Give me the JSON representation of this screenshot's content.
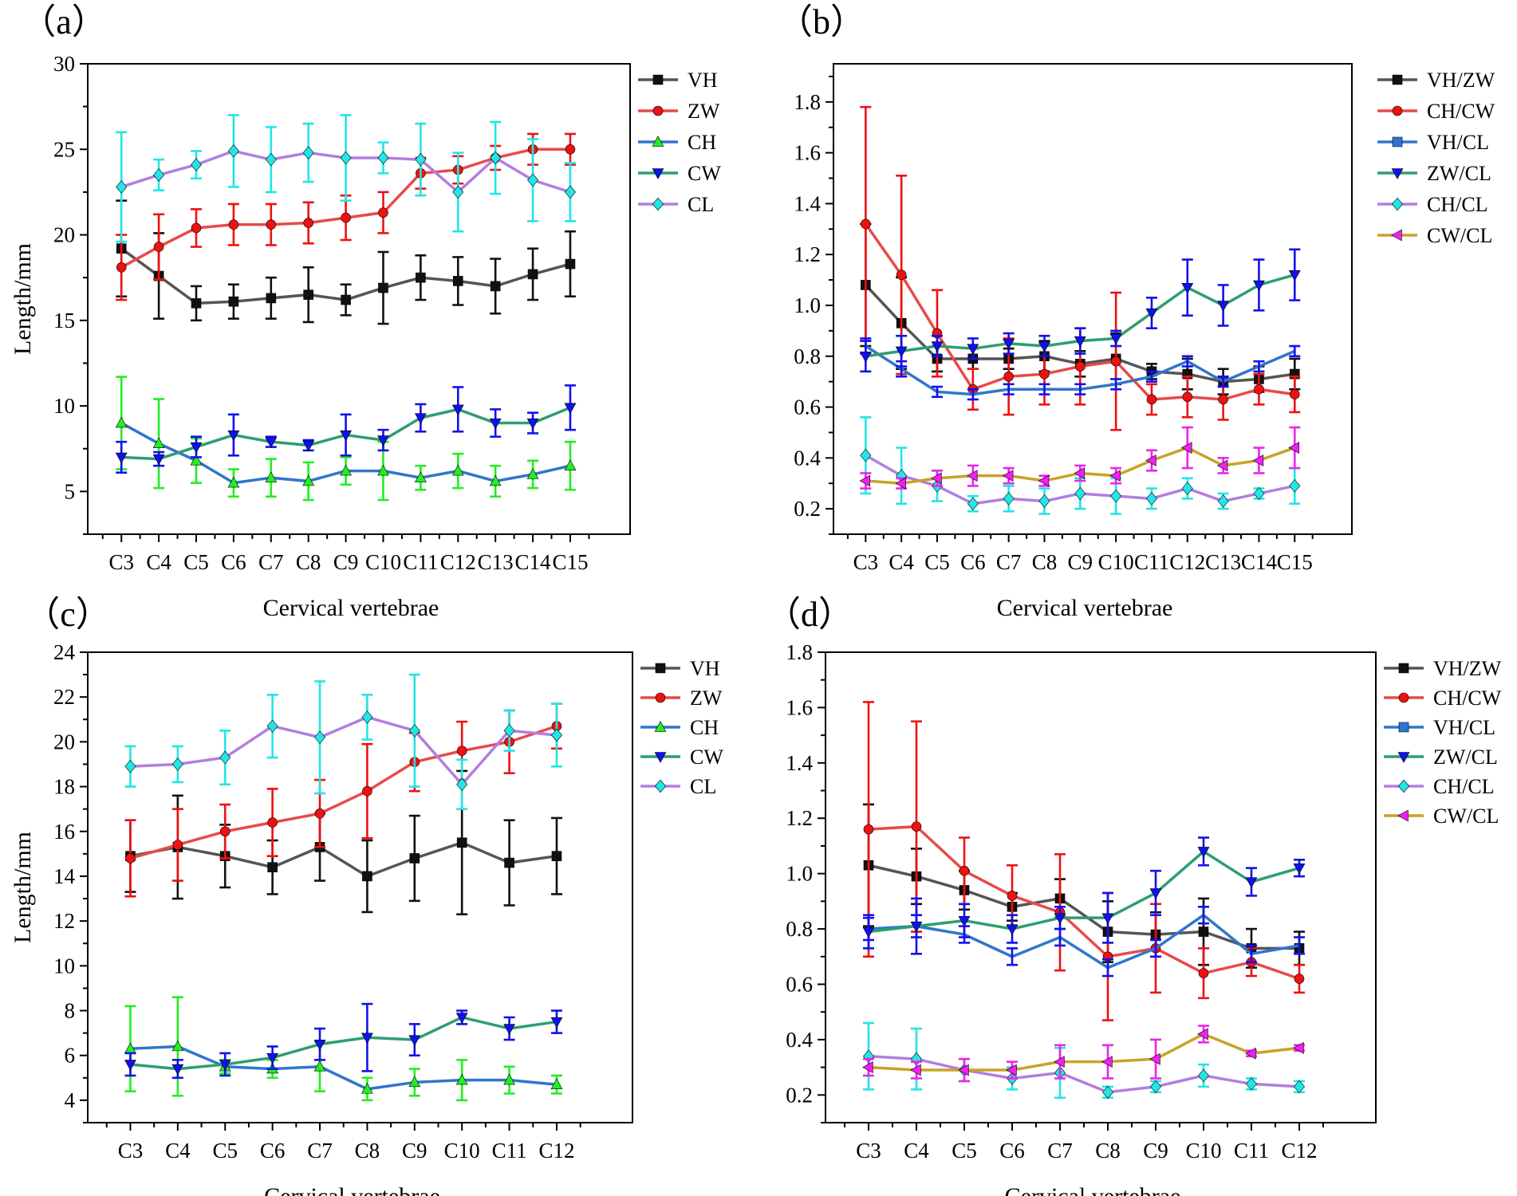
{
  "figure": {
    "chart_data": [
      {
        "id": "a",
        "panel_label": "（a）",
        "type": "line",
        "title": "",
        "xlabel": "Cervical vertebrae",
        "ylabel": "Length/mm",
        "categories": [
          "C3",
          "C4",
          "C5",
          "C6",
          "C7",
          "C8",
          "C9",
          "C10",
          "C11",
          "C12",
          "C13",
          "C14",
          "C15"
        ],
        "ylim": [
          2.5,
          30
        ],
        "yticks": [
          5,
          10,
          15,
          20,
          25,
          30
        ],
        "ytick_labels": [
          "5",
          "10",
          "15",
          "20",
          "25",
          "30"
        ],
        "legend_position": "top-right",
        "series": [
          {
            "name": "VH",
            "line_color": "#555555",
            "marker_color": "#111111",
            "marker": "square",
            "values": [
              19.2,
              17.6,
              16.0,
              16.1,
              16.3,
              16.5,
              16.2,
              16.9,
              17.5,
              17.3,
              17.0,
              17.7,
              18.3
            ],
            "errors": [
              2.8,
              2.5,
              1.0,
              1.0,
              1.2,
              1.6,
              0.9,
              2.1,
              1.3,
              1.4,
              1.6,
              1.5,
              1.9
            ]
          },
          {
            "name": "ZW",
            "line_color": "#e84a4a",
            "marker_color": "#ee1111",
            "marker": "circle",
            "values": [
              18.1,
              19.3,
              20.4,
              20.6,
              20.6,
              20.7,
              21.0,
              21.3,
              23.6,
              23.8,
              24.5,
              25.0,
              25.0
            ],
            "errors": [
              1.9,
              1.9,
              1.1,
              1.2,
              1.2,
              1.2,
              1.3,
              1.2,
              0.9,
              0.8,
              0.7,
              0.9,
              0.9
            ]
          },
          {
            "name": "CH",
            "line_color": "#2f76cc",
            "marker_color": "#22ee22",
            "marker": "triangle-up",
            "values": [
              9.0,
              7.8,
              6.8,
              5.5,
              5.8,
              5.6,
              6.2,
              6.2,
              5.8,
              6.2,
              5.6,
              6.0,
              6.5
            ],
            "errors": [
              2.7,
              2.6,
              1.3,
              0.8,
              1.1,
              1.1,
              0.8,
              1.7,
              0.7,
              1.0,
              0.9,
              0.8,
              1.4
            ]
          },
          {
            "name": "CW",
            "line_color": "#2e9e6e",
            "marker_color": "#1111ee",
            "marker": "triangle-down",
            "values": [
              7.0,
              6.9,
              7.6,
              8.3,
              7.9,
              7.7,
              8.3,
              8.0,
              9.3,
              9.8,
              9.0,
              9.0,
              9.9
            ],
            "errors": [
              0.9,
              0.4,
              0.6,
              1.2,
              0.3,
              0.3,
              1.2,
              0.6,
              0.8,
              1.3,
              0.8,
              0.6,
              1.3
            ]
          },
          {
            "name": "CL",
            "line_color": "#b27ee0",
            "marker_color": "#22e5e5",
            "marker": "diamond",
            "values": [
              22.8,
              23.5,
              24.1,
              24.9,
              24.4,
              24.8,
              24.5,
              24.5,
              24.4,
              22.5,
              24.5,
              23.2,
              22.5
            ],
            "errors": [
              3.2,
              0.9,
              0.8,
              2.1,
              1.9,
              1.7,
              2.5,
              0.9,
              2.1,
              2.3,
              2.1,
              2.4,
              1.7
            ]
          }
        ]
      },
      {
        "id": "b",
        "panel_label": "（b）",
        "type": "line",
        "title": "",
        "xlabel": "Cervical vertebrae",
        "ylabel": "",
        "categories": [
          "C3",
          "C4",
          "C5",
          "C6",
          "C7",
          "C8",
          "C9",
          "C10",
          "C11",
          "C12",
          "C13",
          "C14",
          "C15"
        ],
        "ylim": [
          0.1,
          1.95
        ],
        "yticks": [
          0.2,
          0.4,
          0.6,
          0.8,
          1.0,
          1.2,
          1.4,
          1.6,
          1.8
        ],
        "ytick_labels": [
          "0.2",
          "0.4",
          "0.6",
          "0.8",
          "1.0",
          "1.2",
          "1.4",
          "1.6",
          "1.8"
        ],
        "legend_position": "top-right",
        "series": [
          {
            "name": "VH/ZW",
            "line_color": "#555555",
            "marker_color": "#111111",
            "marker": "square",
            "values": [
              1.08,
              0.93,
              0.79,
              0.79,
              0.79,
              0.8,
              0.77,
              0.79,
              0.74,
              0.73,
              0.7,
              0.71,
              0.73
            ],
            "errors": [
              0.24,
              0.18,
              0.05,
              0.04,
              0.04,
              0.06,
              0.05,
              0.1,
              0.03,
              0.06,
              0.05,
              0.05,
              0.06
            ]
          },
          {
            "name": "CH/CW",
            "line_color": "#e84a4a",
            "marker_color": "#ee1111",
            "marker": "circle",
            "values": [
              1.32,
              1.12,
              0.89,
              0.67,
              0.72,
              0.73,
              0.76,
              0.78,
              0.63,
              0.64,
              0.63,
              0.67,
              0.65
            ],
            "errors": [
              0.46,
              0.39,
              0.17,
              0.08,
              0.15,
              0.12,
              0.15,
              0.27,
              0.06,
              0.08,
              0.08,
              0.06,
              0.07
            ]
          },
          {
            "name": "VH/CL",
            "line_color": "#2f76cc",
            "marker_color": "#1111ee",
            "marker": "none",
            "values": [
              0.84,
              0.75,
              0.66,
              0.65,
              0.67,
              0.67,
              0.67,
              0.69,
              0.72,
              0.78,
              0.7,
              0.76,
              0.82
            ],
            "errors": [
              0.03,
              0.03,
              0.02,
              0.02,
              0.02,
              0.02,
              0.02,
              0.02,
              0.02,
              0.02,
              0.02,
              0.02,
              0.02
            ]
          },
          {
            "name": "ZW/CL",
            "line_color": "#2e9e6e",
            "marker_color": "#1111ee",
            "marker": "triangle-down",
            "values": [
              0.8,
              0.82,
              0.84,
              0.83,
              0.85,
              0.84,
              0.86,
              0.87,
              0.97,
              1.07,
              1.0,
              1.08,
              1.12
            ],
            "errors": [
              0.06,
              0.06,
              0.04,
              0.04,
              0.04,
              0.04,
              0.05,
              0.03,
              0.06,
              0.11,
              0.08,
              0.1,
              0.1
            ]
          },
          {
            "name": "CH/CL",
            "line_color": "#b27ee0",
            "marker_color": "#22e5e5",
            "marker": "diamond",
            "values": [
              0.41,
              0.33,
              0.29,
              0.22,
              0.24,
              0.23,
              0.26,
              0.25,
              0.24,
              0.28,
              0.23,
              0.26,
              0.29
            ],
            "errors": [
              0.15,
              0.11,
              0.06,
              0.03,
              0.05,
              0.05,
              0.06,
              0.07,
              0.04,
              0.04,
              0.03,
              0.02,
              0.07
            ]
          },
          {
            "name": "CW/CL",
            "line_color": "#c9a227",
            "marker_color": "#ee22ee",
            "marker": "triangle-left",
            "values": [
              0.31,
              0.3,
              0.32,
              0.33,
              0.33,
              0.31,
              0.34,
              0.33,
              0.39,
              0.44,
              0.37,
              0.39,
              0.44
            ],
            "errors": [
              0.03,
              0.02,
              0.03,
              0.04,
              0.03,
              0.02,
              0.03,
              0.03,
              0.04,
              0.08,
              0.03,
              0.05,
              0.08
            ]
          }
        ]
      },
      {
        "id": "c",
        "panel_label": "（c）",
        "type": "line",
        "title": "",
        "xlabel": "Cervical vertebrae",
        "ylabel": "Length/mm",
        "categories": [
          "C3",
          "C4",
          "C5",
          "C6",
          "C7",
          "C8",
          "C9",
          "C10",
          "C11",
          "C12"
        ],
        "ylim": [
          3,
          24
        ],
        "yticks": [
          4,
          6,
          8,
          10,
          12,
          14,
          16,
          18,
          20,
          22,
          24
        ],
        "ytick_labels": [
          "4",
          "6",
          "8",
          "10",
          "12",
          "14",
          "16",
          "18",
          "20",
          "22",
          "24"
        ],
        "legend_position": "top-right",
        "series": [
          {
            "name": "VH",
            "line_color": "#555555",
            "marker_color": "#111111",
            "marker": "square",
            "values": [
              14.9,
              15.3,
              14.9,
              14.4,
              15.3,
              14.0,
              14.8,
              15.5,
              14.6,
              14.9
            ],
            "errors": [
              1.6,
              2.3,
              1.4,
              1.2,
              1.5,
              1.6,
              1.9,
              3.2,
              1.9,
              1.7
            ]
          },
          {
            "name": "ZW",
            "line_color": "#e84a4a",
            "marker_color": "#ee1111",
            "marker": "circle",
            "values": [
              14.8,
              15.4,
              16.0,
              16.4,
              16.8,
              17.8,
              19.1,
              19.6,
              20.0,
              20.7
            ],
            "errors": [
              1.7,
              1.6,
              1.2,
              1.5,
              1.5,
              2.1,
              1.3,
              1.3,
              1.4,
              1.0
            ]
          },
          {
            "name": "CH",
            "line_color": "#2f76cc",
            "marker_color": "#22ee22",
            "marker": "triangle-up",
            "values": [
              6.3,
              6.4,
              5.5,
              5.4,
              5.5,
              4.5,
              4.8,
              4.9,
              4.9,
              4.7
            ],
            "errors": [
              1.9,
              2.2,
              0.3,
              0.4,
              1.1,
              0.5,
              0.6,
              0.9,
              0.6,
              0.4
            ]
          },
          {
            "name": "CW",
            "line_color": "#2e9e6e",
            "marker_color": "#1111ee",
            "marker": "triangle-down",
            "values": [
              5.6,
              5.4,
              5.6,
              5.9,
              6.5,
              6.8,
              6.7,
              7.7,
              7.2,
              7.5
            ],
            "errors": [
              0.5,
              0.4,
              0.5,
              0.5,
              0.7,
              1.5,
              0.7,
              0.3,
              0.5,
              0.5
            ]
          },
          {
            "name": "CL",
            "line_color": "#b27ee0",
            "marker_color": "#22e5e5",
            "marker": "diamond",
            "values": [
              18.9,
              19.0,
              19.3,
              20.7,
              20.2,
              21.1,
              20.5,
              18.1,
              20.5,
              20.3
            ],
            "errors": [
              0.9,
              0.8,
              1.2,
              1.4,
              2.5,
              1.0,
              2.5,
              1.1,
              0.9,
              1.4
            ]
          }
        ]
      },
      {
        "id": "d",
        "panel_label": "（d）",
        "type": "line",
        "title": "",
        "xlabel": "Cervical vertebrae",
        "ylabel": "",
        "categories": [
          "C3",
          "C4",
          "C5",
          "C6",
          "C7",
          "C8",
          "C9",
          "C10",
          "C11",
          "C12"
        ],
        "ylim": [
          0.1,
          1.8
        ],
        "yticks": [
          0.2,
          0.4,
          0.6,
          0.8,
          1.0,
          1.2,
          1.4,
          1.6,
          1.8
        ],
        "ytick_labels": [
          "0.2",
          "0.4",
          "0.6",
          "0.8",
          "1.0",
          "1.2",
          "1.4",
          "1.6",
          "1.8"
        ],
        "legend_position": "top-right",
        "series": [
          {
            "name": "VH/ZW",
            "line_color": "#555555",
            "marker_color": "#111111",
            "marker": "square",
            "values": [
              1.03,
              0.99,
              0.94,
              0.88,
              0.91,
              0.79,
              0.78,
              0.79,
              0.73,
              0.73
            ],
            "errors": [
              0.22,
              0.1,
              0.07,
              0.05,
              0.07,
              0.11,
              0.08,
              0.12,
              0.07,
              0.06
            ]
          },
          {
            "name": "CH/CW",
            "line_color": "#e84a4a",
            "marker_color": "#ee1111",
            "marker": "circle",
            "values": [
              1.16,
              1.17,
              1.01,
              0.92,
              0.86,
              0.7,
              0.73,
              0.64,
              0.68,
              0.62
            ],
            "errors": [
              0.46,
              0.38,
              0.12,
              0.11,
              0.21,
              0.23,
              0.16,
              0.09,
              0.05,
              0.05
            ]
          },
          {
            "name": "VH/CL",
            "line_color": "#2f76cc",
            "marker_color": "#1111ee",
            "marker": "none",
            "values": [
              0.8,
              0.81,
              0.78,
              0.7,
              0.77,
              0.66,
              0.73,
              0.85,
              0.71,
              0.74
            ],
            "errors": [
              0.04,
              0.04,
              0.03,
              0.03,
              0.03,
              0.03,
              0.03,
              0.03,
              0.03,
              0.03
            ]
          },
          {
            "name": "ZW/CL",
            "line_color": "#2e9e6e",
            "marker_color": "#1111ee",
            "marker": "triangle-down",
            "values": [
              0.79,
              0.81,
              0.83,
              0.8,
              0.84,
              0.84,
              0.93,
              1.08,
              0.97,
              1.02
            ],
            "errors": [
              0.06,
              0.1,
              0.06,
              0.05,
              0.04,
              0.09,
              0.08,
              0.05,
              0.05,
              0.03
            ]
          },
          {
            "name": "CH/CL",
            "line_color": "#b27ee0",
            "marker_color": "#22e5e5",
            "marker": "diamond",
            "values": [
              0.34,
              0.33,
              0.29,
              0.26,
              0.28,
              0.21,
              0.23,
              0.27,
              0.24,
              0.23
            ],
            "errors": [
              0.12,
              0.11,
              0.04,
              0.04,
              0.09,
              0.02,
              0.02,
              0.04,
              0.02,
              0.02
            ]
          },
          {
            "name": "CW/CL",
            "line_color": "#c9a227",
            "marker_color": "#ee22ee",
            "marker": "triangle-left",
            "values": [
              0.3,
              0.29,
              0.29,
              0.29,
              0.32,
              0.32,
              0.33,
              0.42,
              0.35,
              0.37
            ],
            "errors": [
              0.03,
              0.03,
              0.04,
              0.03,
              0.06,
              0.06,
              0.07,
              0.03,
              0.01,
              0.01
            ]
          }
        ]
      }
    ]
  }
}
